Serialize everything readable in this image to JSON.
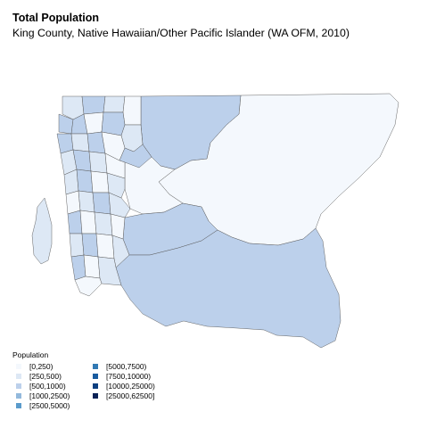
{
  "title": "Total Population",
  "subtitle": "King County, Native Hawaiian/Other Pacific Islander (WA OFM, 2010)",
  "legend": {
    "title": "Population",
    "items": [
      {
        "label": "[0,250)",
        "color": "#f4f8fd"
      },
      {
        "label": "[250,500)",
        "color": "#dde8f5"
      },
      {
        "label": "[500,1000)",
        "color": "#bcd0eb"
      },
      {
        "label": "[1000,2500)",
        "color": "#93b9dc"
      },
      {
        "label": "[2500,5000)",
        "color": "#5b9bcb"
      },
      {
        "label": "[5000,7500)",
        "color": "#3179b4"
      },
      {
        "label": "[7500,10000)",
        "color": "#185b9f"
      },
      {
        "label": "[10000,25000)",
        "color": "#0d3f80"
      },
      {
        "label": "[25000,62500]",
        "color": "#0a2256"
      }
    ]
  }
}
